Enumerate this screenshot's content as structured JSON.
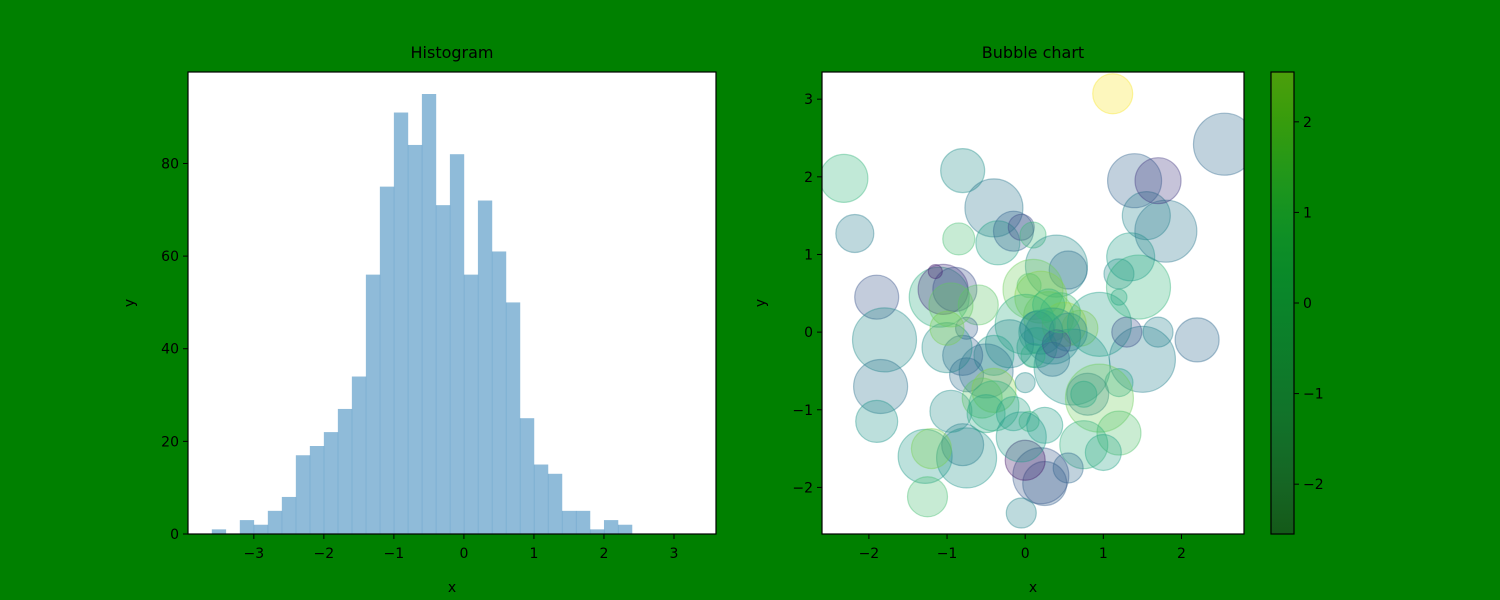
{
  "figure": {
    "background": "#008000"
  },
  "chart_data": [
    {
      "type": "bar",
      "title": "Histogram",
      "xlabel": "x",
      "ylabel": "y",
      "bar_color": "#1f77b4",
      "bar_alpha": 0.5,
      "xlim": [
        -3.94,
        3.6
      ],
      "ylim": [
        0,
        99.75
      ],
      "xticks": [
        -3,
        -2,
        -1,
        0,
        1,
        2,
        3
      ],
      "xtick_labels": [
        "−3",
        "−2",
        "−1",
        "0",
        "1",
        "2",
        "3"
      ],
      "yticks": [
        0,
        20,
        40,
        60,
        80
      ],
      "ytick_labels": [
        "0",
        "20",
        "40",
        "60",
        "80"
      ],
      "grid": false,
      "bin_edges": [
        -3.6,
        -3.4,
        -3.2,
        -3.0,
        -2.8,
        -2.6,
        -2.4,
        -2.2,
        -2.0,
        -1.8,
        -1.6,
        -1.4,
        -1.2,
        -1.0,
        -0.8,
        -0.6,
        -0.4,
        -0.2,
        0.0,
        0.2,
        0.4,
        0.6,
        0.8,
        1.0,
        1.2,
        1.4,
        1.6,
        1.8,
        2.0,
        2.2,
        2.4,
        2.6,
        2.8,
        3.0,
        3.2
      ],
      "values": [
        1,
        0,
        3,
        2,
        5,
        8,
        17,
        19,
        22,
        27,
        34,
        56,
        75,
        91,
        84,
        95,
        71,
        82,
        56,
        72,
        61,
        50,
        25,
        15,
        13,
        5,
        5,
        1,
        3,
        2,
        0,
        0,
        0,
        0
      ]
    },
    {
      "type": "scatter",
      "title": "Bubble chart",
      "xlabel": "x",
      "ylabel": "y",
      "xlim": [
        -2.6,
        2.8
      ],
      "ylim": [
        -2.6,
        3.35
      ],
      "xticks": [
        -2,
        -1,
        0,
        1,
        2
      ],
      "xtick_labels": [
        "−2",
        "−1",
        "0",
        "1",
        "2"
      ],
      "yticks": [
        -2,
        -1,
        0,
        1,
        2,
        3
      ],
      "ytick_labels": [
        "−2",
        "−1",
        "0",
        "1",
        "2",
        "3"
      ],
      "alpha": 0.3,
      "grid": false,
      "colormap": "viridis",
      "colorbar": {
        "range": [
          -2.55,
          2.55
        ],
        "ticks": [
          -2,
          -1,
          0,
          1,
          2
        ],
        "tick_labels": [
          "−2",
          "−1",
          "0",
          "1",
          "2"
        ]
      },
      "points": [
        {
          "x": 1.12,
          "y": 3.07,
          "size": 20,
          "c": 2.5
        },
        {
          "x": -2.32,
          "y": 1.98,
          "size": 24,
          "c": 0.8
        },
        {
          "x": -2.18,
          "y": 1.27,
          "size": 19,
          "c": -0.4
        },
        {
          "x": -1.9,
          "y": 0.45,
          "size": 22,
          "c": -1.2
        },
        {
          "x": -1.8,
          "y": -0.1,
          "size": 32,
          "c": -0.1
        },
        {
          "x": -1.85,
          "y": -0.7,
          "size": 27,
          "c": -0.6
        },
        {
          "x": -1.9,
          "y": -1.15,
          "size": 21,
          "c": 0.1
        },
        {
          "x": -1.28,
          "y": -1.6,
          "size": 27,
          "c": 0.2
        },
        {
          "x": -1.25,
          "y": -2.12,
          "size": 20,
          "c": 1.0
        },
        {
          "x": -1.1,
          "y": 0.45,
          "size": 30,
          "c": 0.6
        },
        {
          "x": -1.05,
          "y": 0.55,
          "size": 25,
          "c": -1.8
        },
        {
          "x": -0.9,
          "y": 0.55,
          "size": 22,
          "c": -1.3
        },
        {
          "x": -1.15,
          "y": 0.78,
          "size": 7,
          "c": -2.1
        },
        {
          "x": -0.8,
          "y": 2.08,
          "size": 22,
          "c": 0.0
        },
        {
          "x": -0.85,
          "y": 1.2,
          "size": 16,
          "c": 1.0
        },
        {
          "x": -0.4,
          "y": 1.6,
          "size": 29,
          "c": -0.5
        },
        {
          "x": -0.35,
          "y": 1.15,
          "size": 22,
          "c": 0.4
        },
        {
          "x": -0.15,
          "y": 1.3,
          "size": 20,
          "c": -0.9
        },
        {
          "x": -0.05,
          "y": 1.35,
          "size": 13,
          "c": -1.4
        },
        {
          "x": 0.1,
          "y": 1.25,
          "size": 13,
          "c": 0.9
        },
        {
          "x": 0.4,
          "y": 0.85,
          "size": 31,
          "c": -0.1
        },
        {
          "x": 0.55,
          "y": 0.8,
          "size": 19,
          "c": -0.7
        },
        {
          "x": 0.1,
          "y": 0.55,
          "size": 30,
          "c": 1.4
        },
        {
          "x": 0.2,
          "y": 0.45,
          "size": 26,
          "c": 1.6
        },
        {
          "x": -0.6,
          "y": 0.35,
          "size": 20,
          "c": 1.2
        },
        {
          "x": 0.3,
          "y": 0.2,
          "size": 25,
          "c": 1.5
        },
        {
          "x": 0.5,
          "y": 0.1,
          "size": 22,
          "c": 2.1
        },
        {
          "x": 0.7,
          "y": 0.05,
          "size": 18,
          "c": 1.8
        },
        {
          "x": 0.2,
          "y": 0.0,
          "size": 22,
          "c": 0.2
        },
        {
          "x": 0.35,
          "y": -0.05,
          "size": 28,
          "c": -0.3
        },
        {
          "x": 0.15,
          "y": -0.2,
          "size": 20,
          "c": 0.5
        },
        {
          "x": 0.0,
          "y": 0.1,
          "size": 30,
          "c": 0.6
        },
        {
          "x": -0.2,
          "y": -0.15,
          "size": 24,
          "c": -0.2
        },
        {
          "x": -0.4,
          "y": -0.3,
          "size": 20,
          "c": 0.3
        },
        {
          "x": -0.5,
          "y": -0.5,
          "size": 27,
          "c": -0.6
        },
        {
          "x": -0.8,
          "y": -0.3,
          "size": 20,
          "c": -0.9
        },
        {
          "x": -0.75,
          "y": 0.05,
          "size": 11,
          "c": -1.0
        },
        {
          "x": -1.0,
          "y": -0.2,
          "size": 25,
          "c": 0.0
        },
        {
          "x": -0.95,
          "y": 0.35,
          "size": 22,
          "c": 1.3
        },
        {
          "x": -1.0,
          "y": 0.05,
          "size": 17,
          "c": 1.5
        },
        {
          "x": -0.75,
          "y": -0.55,
          "size": 17,
          "c": -0.7
        },
        {
          "x": 0.6,
          "y": -0.45,
          "size": 38,
          "c": 0.1
        },
        {
          "x": 0.35,
          "y": -0.35,
          "size": 17,
          "c": -0.6
        },
        {
          "x": 0.55,
          "y": 0.0,
          "size": 19,
          "c": -0.4
        },
        {
          "x": 0.95,
          "y": 0.1,
          "size": 32,
          "c": 0.3
        },
        {
          "x": 1.5,
          "y": -0.35,
          "size": 33,
          "c": -0.3
        },
        {
          "x": 1.3,
          "y": 0.0,
          "size": 15,
          "c": -1.3
        },
        {
          "x": 1.7,
          "y": 0.0,
          "size": 15,
          "c": -0.3
        },
        {
          "x": 1.2,
          "y": -0.65,
          "size": 14,
          "c": 0.3
        },
        {
          "x": 1.2,
          "y": 0.75,
          "size": 15,
          "c": -0.1
        },
        {
          "x": 1.2,
          "y": 0.45,
          "size": 8,
          "c": 0.4
        },
        {
          "x": 1.45,
          "y": 0.58,
          "size": 32,
          "c": 0.8
        },
        {
          "x": 1.35,
          "y": 0.97,
          "size": 24,
          "c": 0.3
        },
        {
          "x": 1.55,
          "y": 1.5,
          "size": 24,
          "c": -0.2
        },
        {
          "x": 1.8,
          "y": 1.3,
          "size": 31,
          "c": -0.5
        },
        {
          "x": 1.4,
          "y": 1.95,
          "size": 27,
          "c": -0.9
        },
        {
          "x": 1.7,
          "y": 1.95,
          "size": 23,
          "c": -1.7
        },
        {
          "x": 2.55,
          "y": 2.42,
          "size": 31,
          "c": -0.8
        },
        {
          "x": 2.2,
          "y": -0.1,
          "size": 22,
          "c": -0.8
        },
        {
          "x": 0.8,
          "y": -0.8,
          "size": 21,
          "c": -0.5
        },
        {
          "x": 0.95,
          "y": -0.85,
          "size": 34,
          "c": 1.4
        },
        {
          "x": 0.75,
          "y": -0.8,
          "size": 13,
          "c": 0.5
        },
        {
          "x": 1.2,
          "y": -1.3,
          "size": 22,
          "c": 1.1
        },
        {
          "x": 1.0,
          "y": -1.55,
          "size": 18,
          "c": 0.4
        },
        {
          "x": 0.75,
          "y": -1.45,
          "size": 24,
          "c": 0.7
        },
        {
          "x": 0.55,
          "y": -1.75,
          "size": 15,
          "c": -0.8
        },
        {
          "x": 0.25,
          "y": -1.95,
          "size": 22,
          "c": -1.0
        },
        {
          "x": 0.2,
          "y": -1.85,
          "size": 28,
          "c": -1.1
        },
        {
          "x": 0.0,
          "y": -1.65,
          "size": 20,
          "c": -2.2
        },
        {
          "x": -0.05,
          "y": -2.33,
          "size": 15,
          "c": -0.2
        },
        {
          "x": -0.75,
          "y": -1.62,
          "size": 30,
          "c": 0.1
        },
        {
          "x": -0.8,
          "y": -1.45,
          "size": 21,
          "c": -0.4
        },
        {
          "x": -1.2,
          "y": -1.5,
          "size": 20,
          "c": 1.5
        },
        {
          "x": -0.95,
          "y": -1.02,
          "size": 21,
          "c": 0.0
        },
        {
          "x": -0.55,
          "y": -0.85,
          "size": 20,
          "c": 1.2
        },
        {
          "x": -0.4,
          "y": -0.75,
          "size": 22,
          "c": 1.6
        },
        {
          "x": -0.4,
          "y": -0.95,
          "size": 25,
          "c": 0.7
        },
        {
          "x": -0.5,
          "y": -1.05,
          "size": 19,
          "c": 0.5
        },
        {
          "x": -0.15,
          "y": -1.05,
          "size": 17,
          "c": 0.4
        },
        {
          "x": 0.05,
          "y": -1.15,
          "size": 10,
          "c": 0.9
        },
        {
          "x": 0.25,
          "y": -1.2,
          "size": 18,
          "c": 0.3
        },
        {
          "x": -0.05,
          "y": -1.35,
          "size": 25,
          "c": 0.2
        },
        {
          "x": 0.0,
          "y": -0.65,
          "size": 10,
          "c": -0.1
        },
        {
          "x": 0.1,
          "y": -0.3,
          "size": 12,
          "c": 0.6
        },
        {
          "x": 0.4,
          "y": -0.15,
          "size": 14,
          "c": -1.3
        },
        {
          "x": 0.15,
          "y": 0.05,
          "size": 17,
          "c": -0.2
        },
        {
          "x": 0.45,
          "y": 0.25,
          "size": 20,
          "c": 0.9
        },
        {
          "x": 0.05,
          "y": 0.6,
          "size": 12,
          "c": 1.2
        },
        {
          "x": 0.3,
          "y": 0.35,
          "size": 16,
          "c": 0.8
        }
      ]
    }
  ]
}
